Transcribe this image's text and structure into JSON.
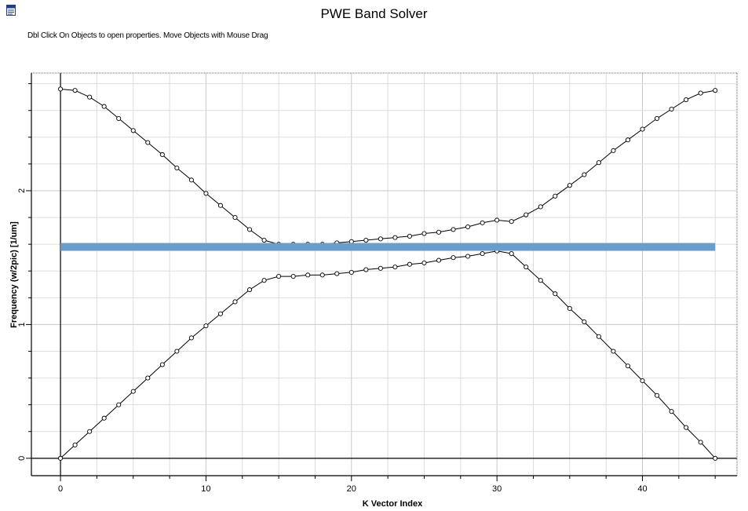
{
  "window": {
    "title": "PWE Band Solver",
    "hint": "Dbl Click On Objects to open properties.  Move Objects with Mouse Drag",
    "icon": "document-icon"
  },
  "chart_data": {
    "type": "line",
    "title": "",
    "xlabel": "K Vector Index",
    "ylabel": "Frequency (w/2pic) [1/um]",
    "xlim": [
      -2,
      46.5
    ],
    "ylim": [
      -0.13,
      2.88
    ],
    "xticks": [
      0,
      10,
      20,
      30,
      40
    ],
    "yticks": [
      0,
      1,
      2
    ],
    "grid": true,
    "legend": "none",
    "x": [
      0,
      1,
      2,
      3,
      4,
      5,
      6,
      7,
      8,
      9,
      10,
      11,
      12,
      13,
      14,
      15,
      16,
      17,
      18,
      19,
      20,
      21,
      22,
      23,
      24,
      25,
      26,
      27,
      28,
      29,
      30,
      31,
      32,
      33,
      34,
      35,
      36,
      37,
      38,
      39,
      40,
      41,
      42,
      43,
      44,
      45
    ],
    "series": [
      {
        "color": "#000000",
        "values": [
          2.76,
          2.75,
          2.7,
          2.63,
          2.54,
          2.45,
          2.36,
          2.27,
          2.17,
          2.08,
          1.98,
          1.89,
          1.8,
          1.71,
          1.63,
          1.6,
          1.6,
          1.6,
          1.6,
          1.61,
          1.62,
          1.63,
          1.64,
          1.65,
          1.66,
          1.68,
          1.69,
          1.71,
          1.73,
          1.76,
          1.78,
          1.77,
          1.82,
          1.88,
          1.96,
          2.04,
          2.12,
          2.21,
          2.3,
          2.38,
          2.46,
          2.54,
          2.61,
          2.68,
          2.73,
          2.75
        ]
      },
      {
        "color": "#000000",
        "values": [
          0.0,
          0.1,
          0.2,
          0.3,
          0.4,
          0.5,
          0.6,
          0.7,
          0.8,
          0.9,
          0.99,
          1.08,
          1.17,
          1.26,
          1.33,
          1.36,
          1.36,
          1.37,
          1.37,
          1.38,
          1.39,
          1.41,
          1.42,
          1.43,
          1.45,
          1.46,
          1.48,
          1.5,
          1.51,
          1.53,
          1.55,
          1.53,
          1.43,
          1.33,
          1.23,
          1.12,
          1.02,
          0.91,
          0.8,
          0.69,
          0.58,
          0.47,
          0.35,
          0.23,
          0.12,
          0.0
        ]
      }
    ],
    "highlight": {
      "color": "#6b9ccc",
      "y": 1.58,
      "x_from": 0,
      "x_to": 45
    }
  }
}
